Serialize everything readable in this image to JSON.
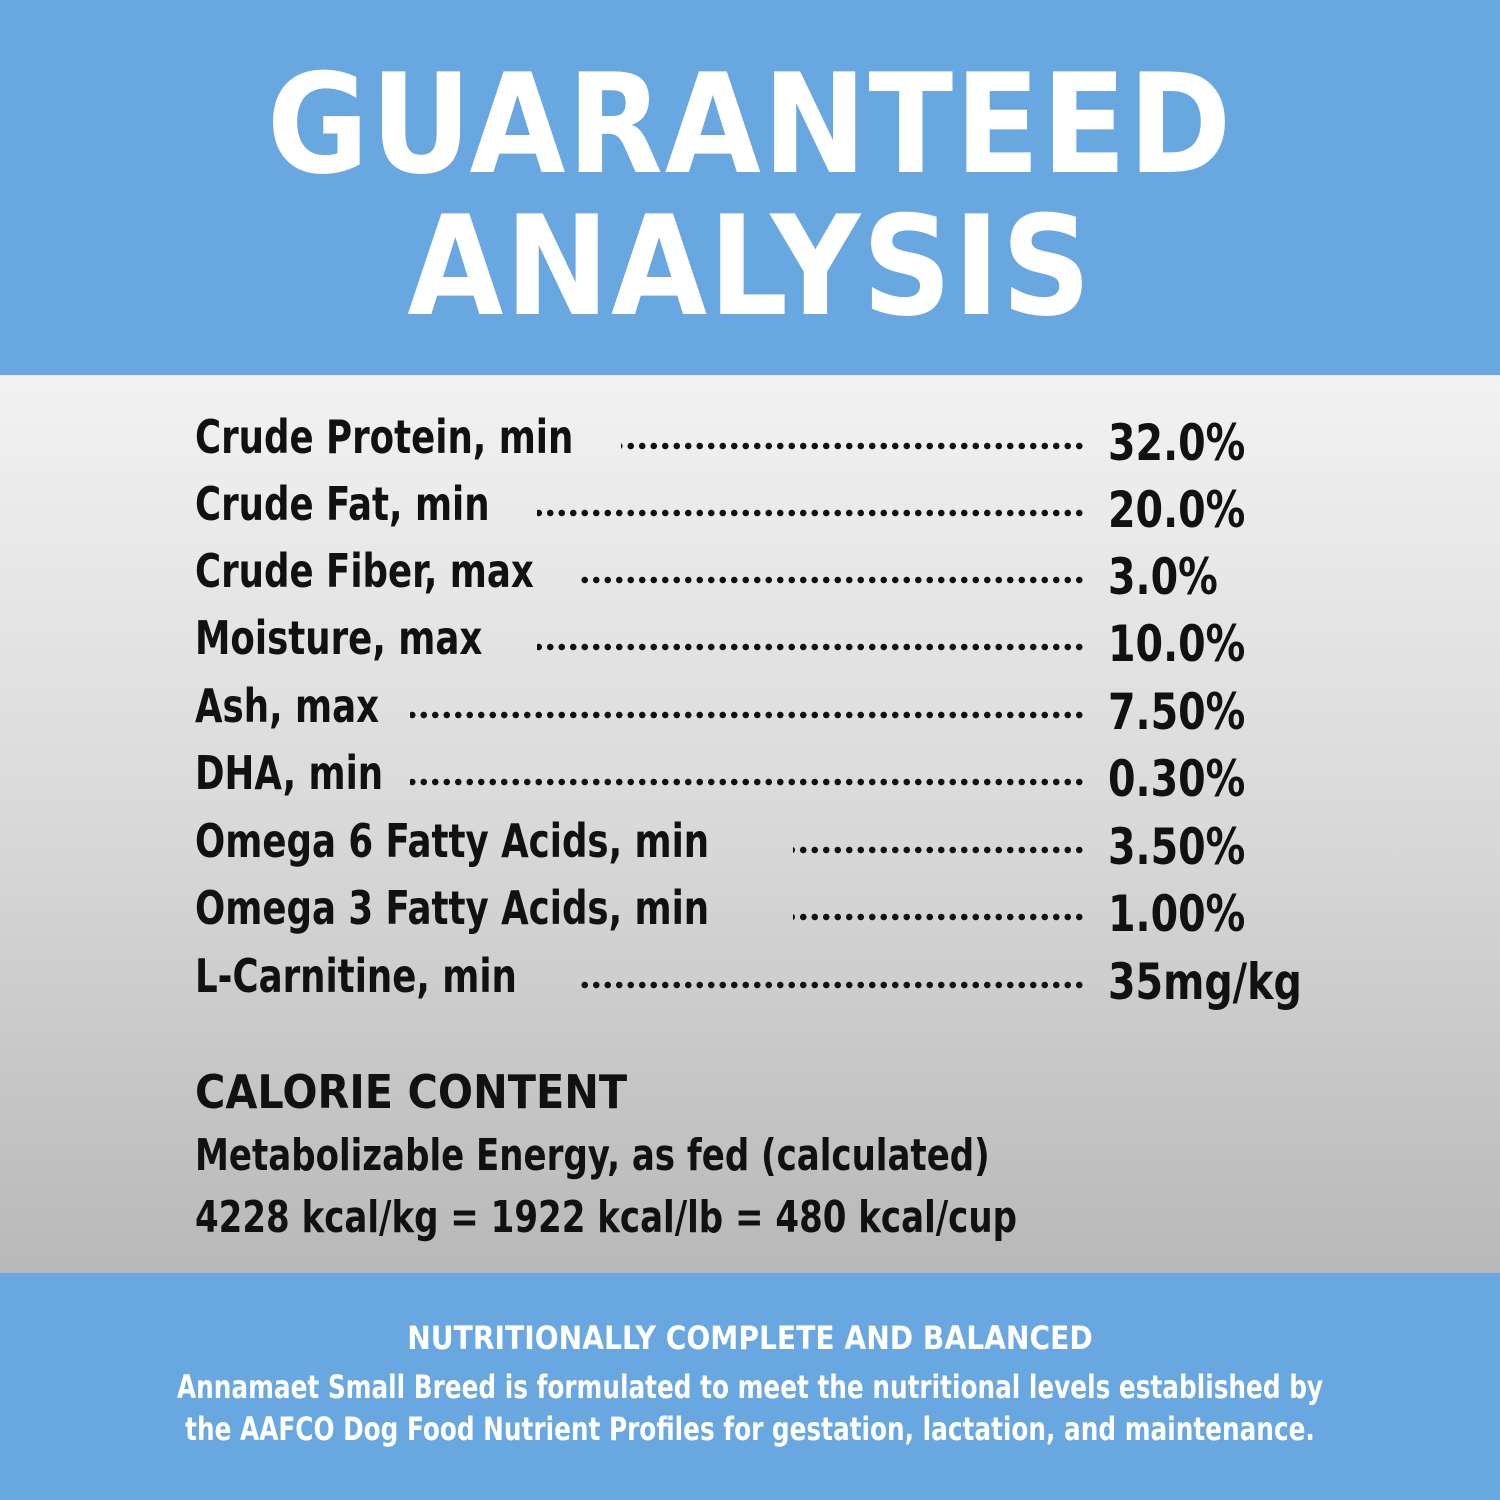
{
  "header": {
    "title_line1": "GUARANTEED",
    "title_line2": "ANALYSIS",
    "background_color": "#68a7e0"
  },
  "analysis": {
    "rows": [
      {
        "label": "Crude Protein, min",
        "value": "32.0%"
      },
      {
        "label": "Crude Fat, min",
        "value": "20.0%"
      },
      {
        "label": "Crude Fiber, max",
        "value": "3.0%"
      },
      {
        "label": "Moisture, max",
        "value": "10.0%"
      },
      {
        "label": "Ash, max",
        "value": "7.50%"
      },
      {
        "label": "DHA, min",
        "value": "0.30%"
      },
      {
        "label": "Omega 6 Fatty Acids, min",
        "value": "3.50%"
      },
      {
        "label": "Omega 3 Fatty Acids, min",
        "value": "1.00%"
      },
      {
        "label": "L-Carnitine, min",
        "value": "35mg/kg"
      }
    ]
  },
  "calorie": {
    "heading": "CALORIE CONTENT",
    "line1": "Metabolizable Energy, as fed (calculated)",
    "line2": "4228 kcal/kg = 1922 kcal/lb = 480 kcal/cup"
  },
  "footer": {
    "heading": "NUTRITIONALLY COMPLETE AND BALANCED",
    "line1": "Annamaet Small Breed is formulated to meet the nutritional levels established by",
    "line2": "the AAFCO Dog Food Nutrient Profiles for gestation, lactation, and maintenance.",
    "background_color": "#68a7e0"
  }
}
